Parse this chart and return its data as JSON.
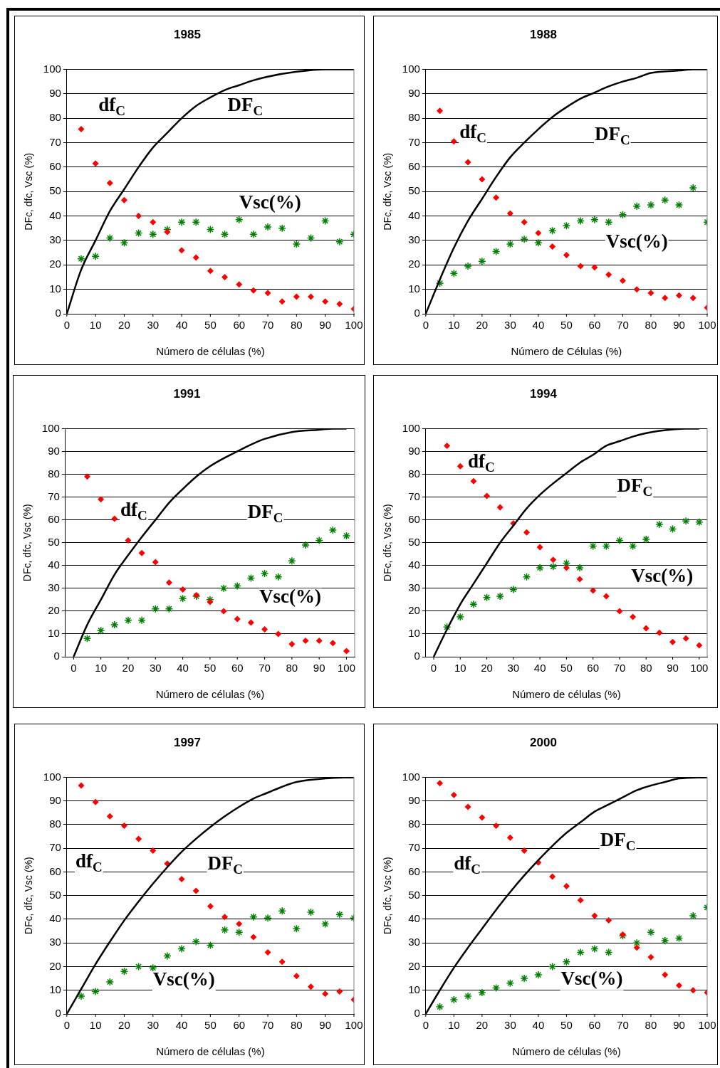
{
  "chart_data": [
    {
      "type": "scatter",
      "title": "1985",
      "xlabel": "Número de células (%)",
      "ylabel": "DFc, dfc, Vsc (%)",
      "xlim": [
        0,
        100
      ],
      "xticks": [
        0,
        10,
        20,
        30,
        40,
        50,
        60,
        70,
        80,
        90,
        100
      ],
      "ylim": [
        0,
        100
      ],
      "yticks": [
        0,
        10,
        20,
        30,
        40,
        50,
        60,
        70,
        80,
        90,
        100
      ],
      "grid": "y",
      "annotations": [
        "df$_{C}$",
        "DF$_{C}$",
        "Vsc(%)"
      ],
      "series": [
        {
          "type": "line",
          "marker": "none",
          "color": "#000000",
          "x": [
            0,
            5,
            10,
            15,
            20,
            25,
            30,
            35,
            40,
            45,
            50,
            55,
            60,
            65,
            70,
            80,
            90,
            100
          ],
          "values": [
            0,
            18,
            30,
            42,
            51,
            60,
            68,
            74,
            80,
            85,
            88.5,
            91.5,
            93.5,
            95.5,
            97,
            99,
            100,
            100
          ]
        },
        {
          "type": "scatter",
          "marker": "diamond",
          "color": "#ff0000",
          "x": [
            5,
            10,
            15,
            20,
            25,
            30,
            35,
            40,
            45,
            50,
            55,
            60,
            65,
            70,
            75,
            80,
            85,
            90,
            95,
            100
          ],
          "values": [
            75.5,
            61.5,
            53.5,
            46.5,
            40,
            37.5,
            33.5,
            26,
            23,
            17.5,
            15,
            12,
            9.5,
            8.5,
            5,
            7,
            7,
            5,
            4,
            2
          ]
        },
        {
          "type": "scatter",
          "marker": "cross",
          "color": "#008000",
          "x": [
            5,
            10,
            15,
            20,
            25,
            30,
            35,
            40,
            45,
            50,
            55,
            60,
            65,
            70,
            75,
            80,
            85,
            90,
            95,
            100
          ],
          "values": [
            22.5,
            23.5,
            31,
            29,
            33,
            32.5,
            34.5,
            37.5,
            37.5,
            34.5,
            32.5,
            38.5,
            32.5,
            35.5,
            35,
            28.5,
            31,
            38,
            29.5,
            32.5
          ]
        }
      ]
    },
    {
      "type": "scatter",
      "title": "1988",
      "xlabel": "Número de Células (%)",
      "ylabel": "DFc, dfc, Vsc (%)",
      "xlim": [
        0,
        100
      ],
      "xticks": [
        0,
        10,
        20,
        30,
        40,
        50,
        60,
        70,
        80,
        90,
        100
      ],
      "ylim": [
        0,
        100
      ],
      "yticks": [
        0,
        10,
        20,
        30,
        40,
        50,
        60,
        70,
        80,
        90,
        100
      ],
      "grid": "y",
      "annotations": [
        "df$_{C}$",
        "DF$_{C}$",
        "Vsc(%)"
      ],
      "series": [
        {
          "type": "line",
          "marker": "none",
          "color": "#000000",
          "x": [
            0,
            5,
            10,
            15,
            20,
            25,
            30,
            35,
            40,
            45,
            50,
            55,
            60,
            65,
            70,
            75,
            80,
            90,
            95,
            100
          ],
          "values": [
            0,
            14,
            27,
            38,
            47,
            56,
            64,
            70,
            75.5,
            80.5,
            84.5,
            88,
            90.5,
            93,
            95,
            96.5,
            98.5,
            99.5,
            100,
            100
          ]
        },
        {
          "type": "scatter",
          "marker": "diamond",
          "color": "#ff0000",
          "x": [
            5,
            10,
            15,
            20,
            25,
            30,
            35,
            40,
            45,
            50,
            55,
            60,
            65,
            70,
            75,
            80,
            85,
            90,
            95,
            100
          ],
          "values": [
            83,
            70.5,
            62,
            55,
            47.5,
            41,
            37.5,
            33,
            27.5,
            24,
            19.5,
            19,
            16,
            13.5,
            10,
            8.5,
            6.5,
            7.5,
            6.5,
            2.5
          ]
        },
        {
          "type": "scatter",
          "marker": "cross",
          "color": "#008000",
          "x": [
            5,
            10,
            15,
            20,
            25,
            30,
            35,
            40,
            45,
            50,
            55,
            60,
            65,
            70,
            75,
            80,
            85,
            90,
            95,
            100
          ],
          "values": [
            12.5,
            16.5,
            19.5,
            21.5,
            25.5,
            28.5,
            30.5,
            29,
            34,
            36,
            38,
            38.5,
            37.5,
            40.5,
            44,
            44.5,
            46.5,
            44.5,
            51.5,
            37.5
          ]
        }
      ]
    },
    {
      "type": "scatter",
      "title": "1991",
      "xlabel": "Número de células (%)",
      "ylabel": "DFc, dfc, Vsc (%)",
      "xlim": [
        -3,
        103
      ],
      "xticks": [
        0,
        10,
        20,
        30,
        40,
        50,
        60,
        70,
        80,
        90,
        100
      ],
      "ylim": [
        0,
        100
      ],
      "yticks": [
        0,
        10,
        20,
        30,
        40,
        50,
        60,
        70,
        80,
        90,
        100
      ],
      "grid": "y",
      "annotations": [
        "df$_{C}$",
        "DF$_{C}$",
        "Vsc(%)"
      ],
      "series": [
        {
          "type": "line",
          "marker": "none",
          "color": "#000000",
          "x": [
            0,
            5,
            10,
            15,
            20,
            25,
            30,
            35,
            40,
            45,
            50,
            55,
            60,
            65,
            70,
            80,
            90,
            95,
            100
          ],
          "values": [
            0,
            14,
            25,
            36,
            44.5,
            52.5,
            60,
            67.5,
            73.5,
            79,
            83.5,
            87,
            90,
            93,
            95.5,
            98.5,
            99.5,
            100,
            100
          ]
        },
        {
          "type": "scatter",
          "marker": "diamond",
          "color": "#ff0000",
          "x": [
            5,
            10,
            15,
            20,
            25,
            30,
            35,
            40,
            45,
            50,
            55,
            60,
            65,
            70,
            75,
            80,
            85,
            90,
            95,
            100
          ],
          "values": [
            79,
            69,
            60.5,
            51,
            45.5,
            41.5,
            32.5,
            29.5,
            27,
            24,
            20,
            16.5,
            15,
            12,
            10,
            5.5,
            7,
            7,
            6,
            2.5
          ]
        },
        {
          "type": "scatter",
          "marker": "cross",
          "color": "#008000",
          "x": [
            5,
            10,
            15,
            20,
            25,
            30,
            35,
            40,
            45,
            50,
            55,
            60,
            65,
            70,
            75,
            80,
            85,
            90,
            95,
            100
          ],
          "values": [
            8,
            11.5,
            14,
            16,
            16,
            21,
            21,
            25.5,
            26.5,
            25,
            30,
            31,
            34.5,
            36.5,
            35,
            42,
            49,
            51,
            55.5,
            53
          ]
        }
      ]
    },
    {
      "type": "scatter",
      "title": "1994",
      "xlabel": "Número de células (%)",
      "ylabel": "DFc, dfc, Vsc (%)",
      "xlim": [
        -3,
        103
      ],
      "xticks": [
        0,
        10,
        20,
        30,
        40,
        50,
        60,
        70,
        80,
        90,
        100
      ],
      "ylim": [
        0,
        100
      ],
      "yticks": [
        0,
        10,
        20,
        30,
        40,
        50,
        60,
        70,
        80,
        90,
        100
      ],
      "grid": "y",
      "annotations": [
        "df$_{C}$",
        "DF$_{C}$",
        "Vsc(%)"
      ],
      "series": [
        {
          "type": "line",
          "marker": "none",
          "color": "#000000",
          "x": [
            0,
            5,
            10,
            15,
            20,
            25,
            30,
            35,
            40,
            45,
            50,
            55,
            60,
            65,
            70,
            75,
            80,
            85,
            95,
            100
          ],
          "values": [
            0,
            12,
            23,
            32,
            41,
            50,
            57.5,
            65,
            71,
            76,
            80.5,
            85,
            88.5,
            92.5,
            94.5,
            96.5,
            98,
            99,
            100,
            100
          ]
        },
        {
          "type": "scatter",
          "marker": "diamond",
          "color": "#ff0000",
          "x": [
            5,
            10,
            15,
            20,
            25,
            30,
            35,
            40,
            45,
            50,
            55,
            60,
            65,
            70,
            75,
            80,
            85,
            90,
            95,
            100
          ],
          "values": [
            92.5,
            83.5,
            77,
            70.5,
            65.5,
            58.5,
            54.5,
            48,
            42.5,
            39,
            34,
            29,
            26.5,
            20,
            17.5,
            12.5,
            10.5,
            6.5,
            8,
            5
          ]
        },
        {
          "type": "scatter",
          "marker": "cross",
          "color": "#008000",
          "x": [
            5,
            10,
            15,
            20,
            25,
            30,
            35,
            40,
            45,
            50,
            55,
            60,
            65,
            70,
            75,
            80,
            85,
            90,
            95,
            100
          ],
          "values": [
            13,
            17.5,
            23,
            26,
            26.5,
            29.5,
            35,
            39,
            39.5,
            41,
            39,
            48.5,
            48.5,
            51,
            48.5,
            51.5,
            58,
            56,
            59.5,
            59
          ]
        }
      ]
    },
    {
      "type": "scatter",
      "title": "1997",
      "xlabel": "Número de células (%)",
      "ylabel": "DFc, dfc, Vsc (%)",
      "xlim": [
        0,
        100
      ],
      "xticks": [
        0,
        10,
        20,
        30,
        40,
        50,
        60,
        70,
        80,
        90,
        100
      ],
      "ylim": [
        0,
        100
      ],
      "yticks": [
        0,
        10,
        20,
        30,
        40,
        50,
        60,
        70,
        80,
        90,
        100
      ],
      "grid": "y",
      "annotations": [
        "df$_{C}$",
        "DF$_{C}$",
        "Vsc(%)"
      ],
      "series": [
        {
          "type": "line",
          "marker": "none",
          "color": "#000000",
          "x": [
            0,
            5,
            10,
            15,
            20,
            25,
            30,
            35,
            40,
            45,
            50,
            55,
            60,
            65,
            70,
            75,
            80,
            90,
            100
          ],
          "values": [
            0,
            10.5,
            21,
            30.5,
            39.5,
            47.5,
            55,
            62,
            68.5,
            74,
            79,
            83.5,
            87.5,
            91,
            93.5,
            96,
            98,
            99.5,
            100
          ]
        },
        {
          "type": "scatter",
          "marker": "diamond",
          "color": "#ff0000",
          "x": [
            5,
            10,
            15,
            20,
            25,
            30,
            35,
            40,
            45,
            50,
            55,
            60,
            65,
            70,
            75,
            80,
            85,
            90,
            95,
            100
          ],
          "values": [
            96.5,
            89.5,
            83.5,
            79.5,
            74,
            69,
            63.5,
            57,
            52,
            45.5,
            41,
            38,
            32.5,
            26,
            22,
            16,
            11.5,
            8.5,
            9.5,
            6
          ]
        },
        {
          "type": "scatter",
          "marker": "cross",
          "color": "#008000",
          "x": [
            5,
            10,
            15,
            20,
            25,
            30,
            35,
            40,
            45,
            50,
            55,
            60,
            65,
            70,
            75,
            80,
            85,
            90,
            95,
            100
          ],
          "values": [
            7.5,
            9.5,
            13.5,
            18,
            20,
            19.5,
            24.5,
            27.5,
            30.5,
            29,
            35.5,
            34.5,
            41,
            40.5,
            43.5,
            36,
            43,
            38,
            42,
            40.5
          ]
        }
      ]
    },
    {
      "type": "scatter",
      "title": "2000",
      "xlabel": "Número de células (%)",
      "ylabel": "DFc, dfc, Vsc (%)",
      "xlim": [
        0,
        100
      ],
      "xticks": [
        0,
        10,
        20,
        30,
        40,
        50,
        60,
        70,
        80,
        90,
        100
      ],
      "ylim": [
        0,
        100
      ],
      "yticks": [
        0,
        10,
        20,
        30,
        40,
        50,
        60,
        70,
        80,
        90,
        100
      ],
      "grid": "y",
      "annotations": [
        "df$_{C}$",
        "DF$_{C}$",
        "Vsc(%)"
      ],
      "series": [
        {
          "type": "line",
          "marker": "none",
          "color": "#000000",
          "x": [
            0,
            5,
            10,
            15,
            20,
            25,
            30,
            35,
            40,
            45,
            50,
            55,
            60,
            65,
            70,
            75,
            80,
            85,
            90,
            100
          ],
          "values": [
            0,
            10,
            19.5,
            28,
            36,
            44,
            51.5,
            58.5,
            65,
            71,
            76.5,
            81,
            85.5,
            88.5,
            91.5,
            94.5,
            96.5,
            98,
            99.5,
            100
          ]
        },
        {
          "type": "scatter",
          "marker": "diamond",
          "color": "#ff0000",
          "x": [
            5,
            10,
            15,
            20,
            25,
            30,
            35,
            40,
            45,
            50,
            55,
            60,
            65,
            70,
            75,
            80,
            85,
            90,
            95,
            100
          ],
          "values": [
            97.5,
            92.5,
            87.5,
            83,
            79.5,
            74.5,
            69,
            64,
            58,
            54,
            48,
            41.5,
            39.5,
            33.5,
            28,
            24,
            16.5,
            12,
            10,
            9
          ]
        },
        {
          "type": "scatter",
          "marker": "cross",
          "color": "#008000",
          "x": [
            5,
            10,
            15,
            20,
            25,
            30,
            35,
            40,
            45,
            50,
            55,
            60,
            65,
            70,
            75,
            80,
            85,
            90,
            95,
            100
          ],
          "values": [
            3,
            6,
            7.5,
            9,
            11,
            13,
            15,
            16.5,
            20,
            22,
            26,
            27.5,
            26,
            33,
            30,
            34.5,
            31,
            32,
            41.5,
            45
          ]
        }
      ]
    }
  ]
}
